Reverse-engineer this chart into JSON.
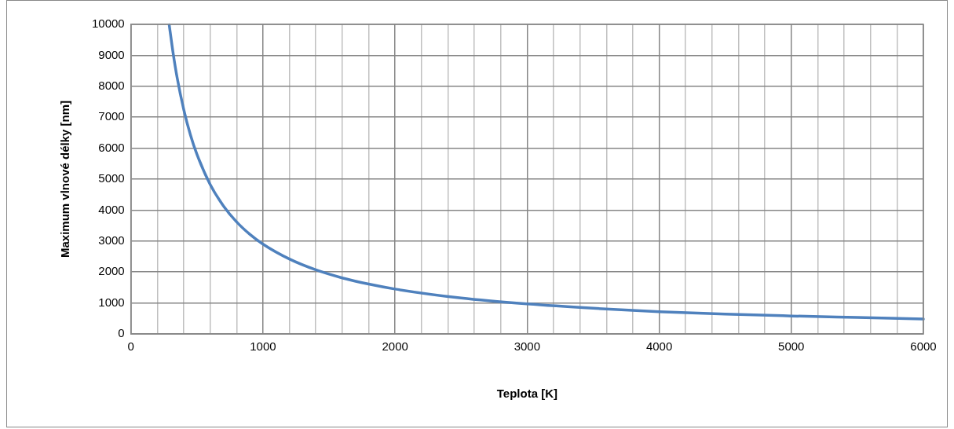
{
  "chart_data": {
    "type": "line",
    "xlabel": "Teplota [K]",
    "ylabel": "Maximum vlnové délky [nm]",
    "series": [
      {
        "color": "#4f81bd",
        "x": [
          290,
          320,
          350,
          400,
          450,
          500,
          600,
          700,
          800,
          900,
          1000,
          1200,
          1400,
          1600,
          1800,
          2000,
          2500,
          3000,
          3500,
          4000,
          4500,
          5000,
          5500,
          6000
        ],
        "values": [
          9990,
          9060,
          8280,
          7250,
          6440,
          5800,
          4830,
          4140,
          3620,
          3220,
          2900,
          2420,
          2070,
          1810,
          1610,
          1450,
          1160,
          970,
          830,
          720,
          640,
          580,
          530,
          480
        ]
      }
    ],
    "xlim": [
      0,
      6000
    ],
    "xticks": [
      0,
      {
        "value": 200,
        "label": null
      },
      {
        "value": 400,
        "label": null
      },
      {
        "value": 600,
        "label": null
      },
      {
        "value": 800,
        "label": null
      },
      1000,
      {
        "value": 1200,
        "label": null
      },
      {
        "value": 1400,
        "label": null
      },
      {
        "value": 1600,
        "label": null
      },
      {
        "value": 1800,
        "label": null
      },
      2000,
      {
        "value": 2200,
        "label": null
      },
      {
        "value": 2400,
        "label": null
      },
      {
        "value": 2600,
        "label": null
      },
      {
        "value": 2800,
        "label": null
      },
      3000,
      {
        "value": 3200,
        "label": null
      },
      {
        "value": 3400,
        "label": null
      },
      {
        "value": 3600,
        "label": null
      },
      {
        "value": 3800,
        "label": null
      },
      4000,
      {
        "value": 4200,
        "label": null
      },
      {
        "value": 4400,
        "label": null
      },
      {
        "value": 4600,
        "label": null
      },
      {
        "value": 4800,
        "label": null
      },
      5000,
      {
        "value": 5200,
        "label": null
      },
      {
        "value": 5400,
        "label": null
      },
      {
        "value": 5600,
        "label": null
      },
      {
        "value": 5800,
        "label": null
      },
      6000
    ],
    "ylim": [
      0,
      10000
    ],
    "yticks": [
      0,
      1000,
      2000,
      3000,
      4000,
      5000,
      6000,
      7000,
      8000,
      9000,
      10000
    ],
    "grid": true,
    "marker": "none",
    "line_style": "solid",
    "legend": false
  }
}
